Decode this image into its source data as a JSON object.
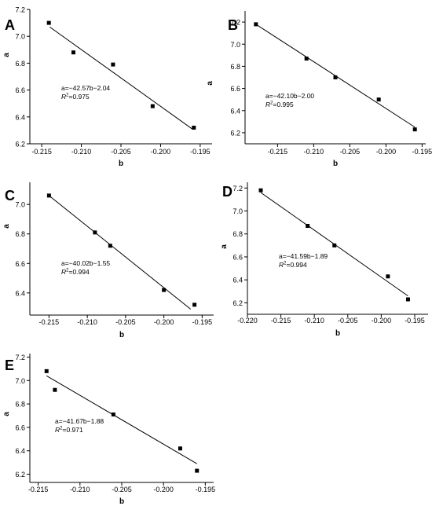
{
  "chart_data": [
    {
      "panel": "A",
      "type": "scatter",
      "xlabel": "b",
      "ylabel": "a",
      "xlim": [
        -0.2165,
        -0.1935
      ],
      "ylim": [
        6.2,
        7.2
      ],
      "xticks": [
        -0.215,
        -0.21,
        -0.205,
        -0.2,
        -0.195
      ],
      "xtick_labels": [
        "-0.215",
        "-0.210",
        "-0.205",
        "-0.200",
        "-0.195"
      ],
      "yticks": [
        6.2,
        6.4,
        6.6,
        6.8,
        7.0,
        7.2
      ],
      "ytick_labels": [
        "6.2",
        "6.4",
        "6.6",
        "6.8",
        "7.0",
        "7.2"
      ],
      "points": [
        {
          "x": -0.2141,
          "y": 7.1
        },
        {
          "x": -0.211,
          "y": 6.88
        },
        {
          "x": -0.206,
          "y": 6.79
        },
        {
          "x": -0.201,
          "y": 6.48
        },
        {
          "x": -0.1958,
          "y": 6.32
        }
      ],
      "fit": {
        "x": [
          -0.214,
          -0.196
        ],
        "y": [
          7.07,
          6.31
        ]
      },
      "equation": "a=−42.57b−2.04",
      "r2_prefix": "R",
      "r2_sup": "2",
      "r2_value": "=0.975"
    },
    {
      "panel": "B",
      "type": "scatter",
      "xlabel": "b",
      "ylabel": "a",
      "xlim": [
        -0.2195,
        -0.1945
      ],
      "ylim": [
        6.1,
        7.3
      ],
      "xticks": [
        -0.215,
        -0.21,
        -0.205,
        -0.2,
        -0.195
      ],
      "xtick_labels": [
        "-0.215",
        "-0.210",
        "-0.205",
        "-0.200",
        "-0.195"
      ],
      "yticks": [
        6.2,
        6.4,
        6.6,
        6.8,
        7.0,
        7.2
      ],
      "ytick_labels": [
        "6.2",
        "6.4",
        "6.6",
        "6.8",
        "7.0",
        "7.2"
      ],
      "points": [
        {
          "x": -0.218,
          "y": 7.18
        },
        {
          "x": -0.211,
          "y": 6.87
        },
        {
          "x": -0.207,
          "y": 6.7
        },
        {
          "x": -0.201,
          "y": 6.5
        },
        {
          "x": -0.196,
          "y": 6.23
        }
      ],
      "fit": {
        "x": [
          -0.218,
          -0.196
        ],
        "y": [
          7.18,
          6.25
        ]
      },
      "equation": "a=−42.10b−2.00",
      "r2_prefix": "R",
      "r2_sup": "2",
      "r2_value": "=0.995"
    },
    {
      "panel": "C",
      "type": "scatter",
      "xlabel": "b",
      "ylabel": "a",
      "xlim": [
        -0.2175,
        -0.1935
      ],
      "ylim": [
        6.25,
        7.15
      ],
      "xticks": [
        -0.215,
        -0.21,
        -0.205,
        -0.2,
        -0.195
      ],
      "xtick_labels": [
        "-0.215",
        "-0.210",
        "-0.205",
        "-0.200",
        "-0.195"
      ],
      "yticks": [
        6.4,
        6.6,
        6.8,
        7.0
      ],
      "ytick_labels": [
        "6.4",
        "6.6",
        "6.8",
        "7.0"
      ],
      "points": [
        {
          "x": -0.215,
          "y": 7.06
        },
        {
          "x": -0.209,
          "y": 6.81
        },
        {
          "x": -0.207,
          "y": 6.72
        },
        {
          "x": -0.2,
          "y": 6.42
        },
        {
          "x": -0.196,
          "y": 6.32
        }
      ],
      "fit": {
        "x": [
          -0.215,
          -0.1965
        ],
        "y": [
          7.06,
          6.29
        ]
      },
      "equation": "a=−40.02b−1.55",
      "r2_prefix": "R",
      "r2_sup": "2",
      "r2_value": "=0.994"
    },
    {
      "panel": "D",
      "type": "scatter",
      "xlabel": "b",
      "ylabel": "a",
      "xlim": [
        -0.22,
        -0.193
      ],
      "ylim": [
        6.1,
        7.25
      ],
      "xticks": [
        -0.22,
        -0.215,
        -0.21,
        -0.205,
        -0.2,
        -0.195
      ],
      "xtick_labels": [
        "-0.220",
        "-0.215",
        "-0.210",
        "-0.205",
        "-0.200",
        "-0.195"
      ],
      "yticks": [
        6.2,
        6.4,
        6.6,
        6.8,
        7.0,
        7.2
      ],
      "ytick_labels": [
        "6.2",
        "6.4",
        "6.6",
        "6.8",
        "7.0",
        "7.2"
      ],
      "points": [
        {
          "x": -0.218,
          "y": 7.18
        },
        {
          "x": -0.211,
          "y": 6.87
        },
        {
          "x": -0.207,
          "y": 6.7
        },
        {
          "x": -0.199,
          "y": 6.43
        },
        {
          "x": -0.196,
          "y": 6.23
        }
      ],
      "fit": {
        "x": [
          -0.218,
          -0.196
        ],
        "y": [
          7.16,
          6.26
        ]
      },
      "equation": "a=−41.59b−1.89",
      "r2_prefix": "R",
      "r2_sup": "2",
      "r2_value": "=0.994"
    },
    {
      "panel": "E",
      "type": "scatter",
      "xlabel": "b",
      "ylabel": "a",
      "xlim": [
        -0.216,
        -0.194
      ],
      "ylim": [
        6.13,
        7.23
      ],
      "xticks": [
        -0.215,
        -0.21,
        -0.205,
        -0.2,
        -0.195
      ],
      "xtick_labels": [
        "-0.215",
        "-0.210",
        "-0.205",
        "-0.200",
        "-0.195"
      ],
      "yticks": [
        6.2,
        6.4,
        6.6,
        6.8,
        7.0,
        7.2
      ],
      "ytick_labels": [
        "6.2",
        "6.4",
        "6.6",
        "6.8",
        "7.0",
        "7.2"
      ],
      "points": [
        {
          "x": -0.214,
          "y": 7.08
        },
        {
          "x": -0.213,
          "y": 6.92
        },
        {
          "x": -0.206,
          "y": 6.71
        },
        {
          "x": -0.198,
          "y": 6.42
        },
        {
          "x": -0.196,
          "y": 6.23
        }
      ],
      "fit": {
        "x": [
          -0.214,
          -0.196
        ],
        "y": [
          7.04,
          6.29
        ]
      },
      "equation": "a=−41.67b−1.88",
      "r2_prefix": "R",
      "r2_sup": "2",
      "r2_value": "=0.971"
    }
  ]
}
